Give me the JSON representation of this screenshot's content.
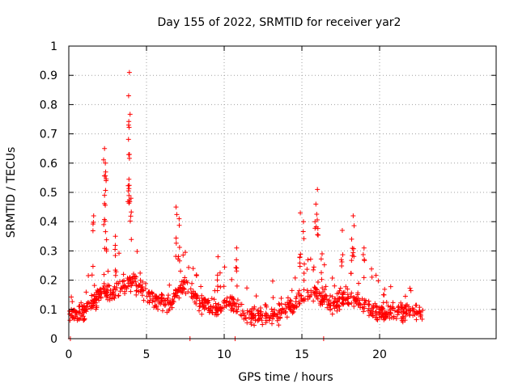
{
  "chart_data": {
    "type": "scatter",
    "title": "Day 155 of 2022, SRMTID for receiver yar2",
    "xlabel": "GPS time / hours",
    "ylabel": "SRMTID / TECUs",
    "xlim": [
      0,
      27.5
    ],
    "ylim": [
      0,
      1
    ],
    "x_ticks": [
      0,
      5,
      10,
      15,
      20
    ],
    "y_ticks": [
      0,
      0.1,
      0.2,
      0.3,
      0.4,
      0.5,
      0.6,
      0.7,
      0.8,
      0.9,
      1
    ],
    "y_tick_labels": [
      "0",
      "0.1",
      "0.2",
      "0.3",
      "0.4",
      "0.5",
      "0.6",
      "0.7",
      "0.8",
      "0.9",
      "1"
    ],
    "grid": true,
    "marker": "+",
    "series": [
      {
        "name": "SRMTID",
        "color": "#ff0000",
        "peaks": [
          {
            "x": 3.9,
            "y": 0.91
          },
          {
            "x": 3.85,
            "y": 0.83
          },
          {
            "x": 3.85,
            "y": 0.73
          },
          {
            "x": 3.9,
            "y": 0.63
          },
          {
            "x": 2.3,
            "y": 0.65
          },
          {
            "x": 2.35,
            "y": 0.6
          },
          {
            "x": 2.4,
            "y": 0.54
          },
          {
            "x": 2.3,
            "y": 0.49
          },
          {
            "x": 4.0,
            "y": 0.48
          },
          {
            "x": 6.9,
            "y": 0.45
          },
          {
            "x": 7.1,
            "y": 0.41
          },
          {
            "x": 16.0,
            "y": 0.51
          },
          {
            "x": 15.9,
            "y": 0.46
          },
          {
            "x": 14.9,
            "y": 0.43
          },
          {
            "x": 15.1,
            "y": 0.4
          },
          {
            "x": 18.3,
            "y": 0.42
          },
          {
            "x": 17.6,
            "y": 0.37
          },
          {
            "x": 18.2,
            "y": 0.34
          },
          {
            "x": 1.6,
            "y": 0.42
          },
          {
            "x": 3.0,
            "y": 0.35
          },
          {
            "x": 10.8,
            "y": 0.31
          },
          {
            "x": 9.6,
            "y": 0.28
          },
          {
            "x": 19.0,
            "y": 0.31
          },
          {
            "x": 16.3,
            "y": 0.29
          }
        ],
        "zero_points": [
          0.1,
          7.8,
          10.7,
          16.4
        ]
      }
    ]
  }
}
